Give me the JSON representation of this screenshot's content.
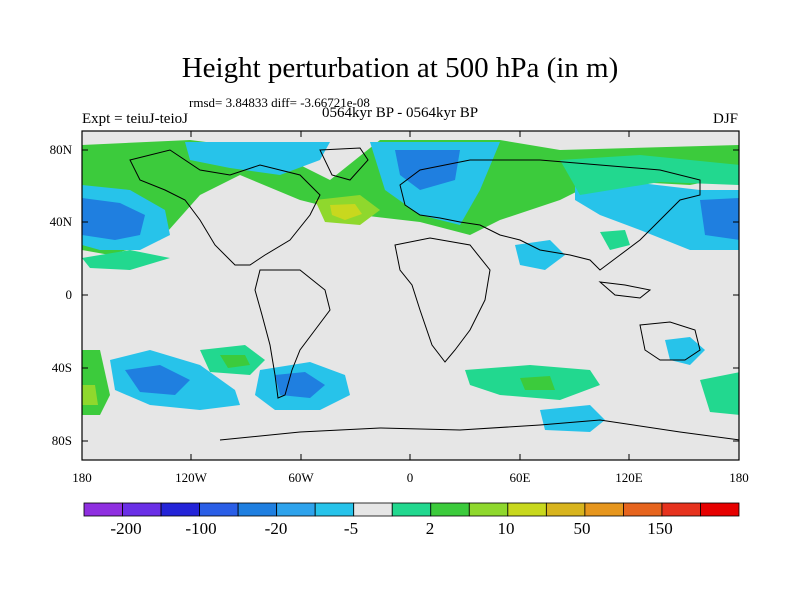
{
  "title": "Height perturbation at 500 hPa (in m)",
  "stats": "rmsd= 3.84833 diff= -3.66721e-08",
  "experiment": "Expt = teiuJ-teioJ",
  "period": "0564kyr BP - 0564kyr BP",
  "season": "DJF",
  "lat_labels": [
    "80N",
    "40N",
    "0",
    "40S",
    "80S"
  ],
  "lon_labels": [
    "180",
    "120W",
    "60W",
    "0",
    "60E",
    "120E",
    "180"
  ],
  "colorbar": {
    "colors": [
      "#8f2fe0",
      "#6a2fe6",
      "#2424d8",
      "#2a5ee6",
      "#1f7fe0",
      "#2ea3ec",
      "#27c3ea",
      "#e6e6e6",
      "#22d88f",
      "#3ccb3c",
      "#8fd82d",
      "#c8d81e",
      "#d8b41e",
      "#e6961e",
      "#e6641e",
      "#e6321e",
      "#e60000"
    ],
    "labels": [
      "-200",
      "-100",
      "-20",
      "-5",
      "2",
      "10",
      "50",
      "150"
    ]
  },
  "colors": {
    "background": "#e6e6e6",
    "lightblue": "#2ea3ec",
    "cyan": "#27c3ea",
    "blue": "#1f7fe0",
    "green": "#22d88f",
    "lightgreen": "#3ccb3c",
    "yellowgreen": "#8fd82d",
    "yellow": "#c8d81e"
  }
}
